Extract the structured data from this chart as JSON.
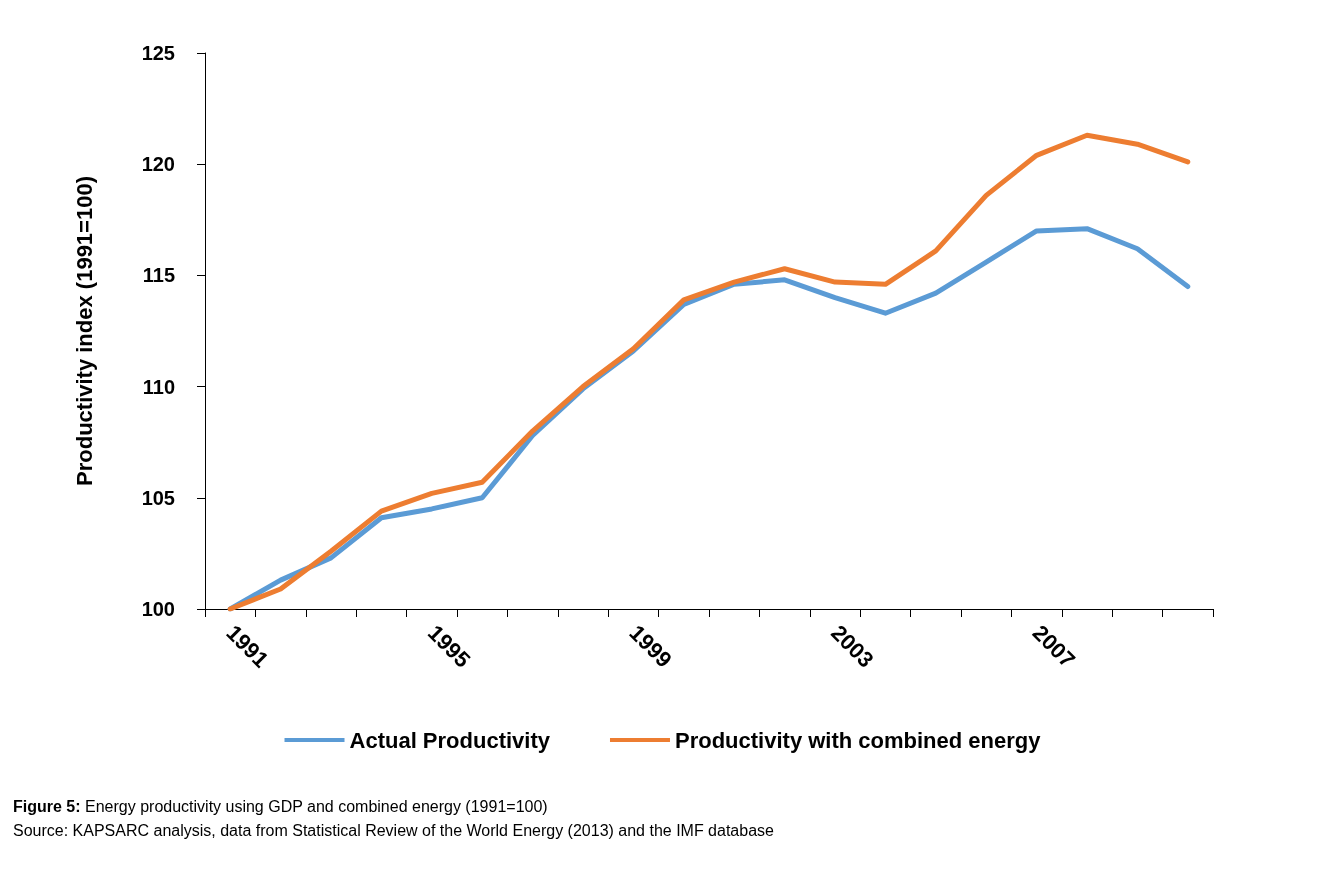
{
  "chart_data": {
    "type": "line",
    "ylabel": "Productivity index (1991=100)",
    "categories": [
      "1991",
      null,
      null,
      null,
      "1995",
      null,
      null,
      null,
      "1999",
      null,
      null,
      null,
      "2003",
      null,
      null,
      null,
      "2007",
      null,
      null,
      null
    ],
    "series": [
      {
        "name": "Actual Productivity",
        "color": "#5b9bd5",
        "values": [
          100,
          101.3,
          102.3,
          104.1,
          104.5,
          105.0,
          107.8,
          109.9,
          111.6,
          113.7,
          114.6,
          114.8,
          114.0,
          113.3,
          114.2,
          115.6,
          117.0,
          117.1,
          116.2,
          114.5
        ]
      },
      {
        "name": "Productivity with combined energy",
        "color": "#ed7d31",
        "values": [
          100,
          100.9,
          102.6,
          104.4,
          105.2,
          105.7,
          108.0,
          110.0,
          111.7,
          113.9,
          114.7,
          115.3,
          114.7,
          114.6,
          116.1,
          118.6,
          120.4,
          121.3,
          120.9,
          120.1
        ]
      }
    ],
    "ylim": [
      100,
      125
    ],
    "yticks": [
      100,
      105,
      110,
      115,
      120,
      125
    ],
    "grid": false,
    "legend": "bottom",
    "marker": "none",
    "line_style": "solid",
    "annotations": [
      "Figure 5: Energy productivity using GDP and combined energy (1991=100)",
      "Source: KAPSARC analysis, data from Statistical Review of the World Energy (2013) and the IMF database"
    ]
  }
}
